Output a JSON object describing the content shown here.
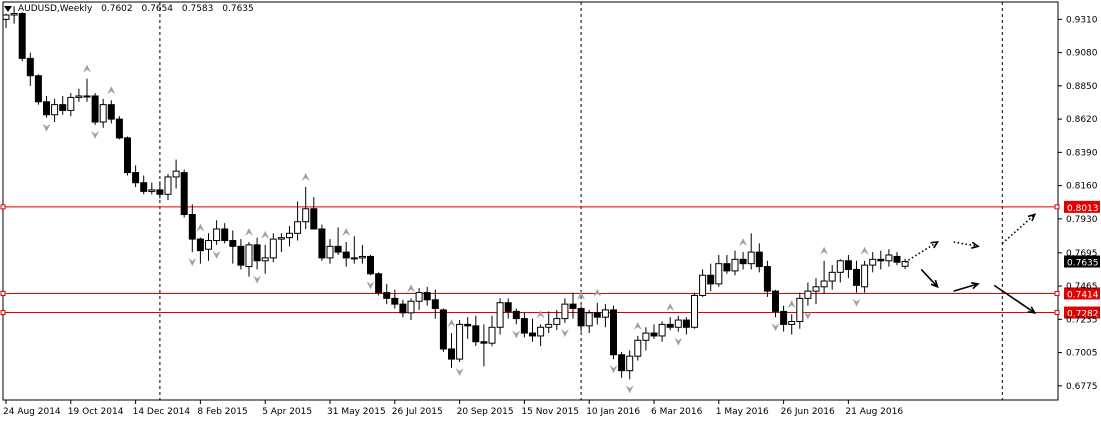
{
  "header": {
    "symbol": "AUDUSD",
    "timeframe": "Weekly",
    "open": "0.7602",
    "high": "0.7654",
    "low": "0.7583",
    "close": "0.7635"
  },
  "colors": {
    "background": "#ffffff",
    "axis": "#000000",
    "bull_fill": "#ffffff",
    "bear_fill": "#000000",
    "level_line": "#e00000",
    "level_label_bg": "#e00000",
    "current_price_bg": "#000000",
    "fractal": "#a0a0a0",
    "grid_dash": "#000000"
  },
  "chart_data": {
    "type": "candlestick",
    "y_range": [
      0.6677,
      0.943
    ],
    "y_ticks": [
      "0.9310",
      "0.9080",
      "0.8850",
      "0.8620",
      "0.8390",
      "0.8160",
      "0.7930",
      "0.7695",
      "0.7465",
      "0.7235",
      "0.7005",
      "0.6775"
    ],
    "x_labels": [
      "24 Aug 2014",
      "19 Oct 2014",
      "14 Dec 2014",
      "8 Feb 2015",
      "5 Apr 2015",
      "31 May 2015",
      "26 Jul 2015",
      "20 Sep 2015",
      "15 Nov 2015",
      "10 Jan 2016",
      "6 Mar 2016",
      "1 May 2016",
      "26 Jun 2016",
      "21 Aug 2016"
    ],
    "x_label_week_index": [
      0,
      8,
      16,
      24,
      32,
      40,
      48,
      56,
      64,
      72,
      80,
      88,
      96,
      104
    ],
    "period_separators_week_index": [
      19,
      71,
      123
    ],
    "levels": [
      {
        "value": 0.8013,
        "label": "0.8013"
      },
      {
        "value": 0.7414,
        "label": "0.7414"
      },
      {
        "value": 0.7282,
        "label": "0.7282"
      }
    ],
    "current_price": {
      "value": 0.7635,
      "label": "0.7635"
    },
    "candles": [
      {
        "o": 0.931,
        "h": 0.935,
        "l": 0.925,
        "c": 0.934
      },
      {
        "o": 0.934,
        "h": 0.94,
        "l": 0.928,
        "c": 0.935
      },
      {
        "o": 0.935,
        "h": 0.936,
        "l": 0.902,
        "c": 0.904
      },
      {
        "o": 0.904,
        "h": 0.908,
        "l": 0.885,
        "c": 0.892
      },
      {
        "o": 0.892,
        "h": 0.893,
        "l": 0.872,
        "c": 0.874
      },
      {
        "o": 0.874,
        "h": 0.878,
        "l": 0.863,
        "c": 0.865
      },
      {
        "o": 0.865,
        "h": 0.876,
        "l": 0.86,
        "c": 0.872
      },
      {
        "o": 0.872,
        "h": 0.878,
        "l": 0.865,
        "c": 0.868
      },
      {
        "o": 0.868,
        "h": 0.88,
        "l": 0.864,
        "c": 0.877
      },
      {
        "o": 0.877,
        "h": 0.883,
        "l": 0.874,
        "c": 0.878
      },
      {
        "o": 0.878,
        "h": 0.89,
        "l": 0.874,
        "c": 0.878
      },
      {
        "o": 0.878,
        "h": 0.88,
        "l": 0.858,
        "c": 0.86
      },
      {
        "o": 0.86,
        "h": 0.876,
        "l": 0.856,
        "c": 0.872
      },
      {
        "o": 0.872,
        "h": 0.875,
        "l": 0.859,
        "c": 0.862
      },
      {
        "o": 0.862,
        "h": 0.864,
        "l": 0.848,
        "c": 0.849
      },
      {
        "o": 0.849,
        "h": 0.85,
        "l": 0.823,
        "c": 0.825
      },
      {
        "o": 0.825,
        "h": 0.83,
        "l": 0.815,
        "c": 0.818
      },
      {
        "o": 0.818,
        "h": 0.823,
        "l": 0.81,
        "c": 0.812
      },
      {
        "o": 0.812,
        "h": 0.818,
        "l": 0.81,
        "c": 0.813
      },
      {
        "o": 0.813,
        "h": 0.819,
        "l": 0.807,
        "c": 0.81
      },
      {
        "o": 0.81,
        "h": 0.824,
        "l": 0.806,
        "c": 0.822
      },
      {
        "o": 0.822,
        "h": 0.834,
        "l": 0.814,
        "c": 0.826
      },
      {
        "o": 0.825,
        "h": 0.827,
        "l": 0.794,
        "c": 0.796
      },
      {
        "o": 0.796,
        "h": 0.803,
        "l": 0.77,
        "c": 0.779
      },
      {
        "o": 0.779,
        "h": 0.78,
        "l": 0.762,
        "c": 0.771
      },
      {
        "o": 0.772,
        "h": 0.783,
        "l": 0.764,
        "c": 0.778
      },
      {
        "o": 0.778,
        "h": 0.792,
        "l": 0.775,
        "c": 0.786
      },
      {
        "o": 0.786,
        "h": 0.79,
        "l": 0.776,
        "c": 0.778
      },
      {
        "o": 0.778,
        "h": 0.785,
        "l": 0.762,
        "c": 0.774
      },
      {
        "o": 0.774,
        "h": 0.779,
        "l": 0.758,
        "c": 0.761
      },
      {
        "o": 0.76,
        "h": 0.777,
        "l": 0.753,
        "c": 0.775
      },
      {
        "o": 0.775,
        "h": 0.78,
        "l": 0.758,
        "c": 0.764
      },
      {
        "o": 0.764,
        "h": 0.775,
        "l": 0.755,
        "c": 0.766
      },
      {
        "o": 0.766,
        "h": 0.783,
        "l": 0.763,
        "c": 0.779
      },
      {
        "o": 0.779,
        "h": 0.783,
        "l": 0.77,
        "c": 0.78
      },
      {
        "o": 0.78,
        "h": 0.788,
        "l": 0.774,
        "c": 0.783
      },
      {
        "o": 0.783,
        "h": 0.805,
        "l": 0.778,
        "c": 0.791
      },
      {
        "o": 0.791,
        "h": 0.815,
        "l": 0.786,
        "c": 0.8
      },
      {
        "o": 0.8,
        "h": 0.808,
        "l": 0.787,
        "c": 0.786
      },
      {
        "o": 0.786,
        "h": 0.789,
        "l": 0.764,
        "c": 0.766
      },
      {
        "o": 0.766,
        "h": 0.779,
        "l": 0.762,
        "c": 0.774
      },
      {
        "o": 0.774,
        "h": 0.787,
        "l": 0.768,
        "c": 0.77
      },
      {
        "o": 0.77,
        "h": 0.777,
        "l": 0.76,
        "c": 0.766
      },
      {
        "o": 0.766,
        "h": 0.781,
        "l": 0.762,
        "c": 0.766
      },
      {
        "o": 0.766,
        "h": 0.775,
        "l": 0.762,
        "c": 0.767
      },
      {
        "o": 0.767,
        "h": 0.768,
        "l": 0.754,
        "c": 0.755
      },
      {
        "o": 0.755,
        "h": 0.756,
        "l": 0.74,
        "c": 0.742
      },
      {
        "o": 0.742,
        "h": 0.748,
        "l": 0.734,
        "c": 0.738
      },
      {
        "o": 0.738,
        "h": 0.744,
        "l": 0.731,
        "c": 0.734
      },
      {
        "o": 0.734,
        "h": 0.737,
        "l": 0.725,
        "c": 0.728
      },
      {
        "o": 0.728,
        "h": 0.738,
        "l": 0.723,
        "c": 0.736
      },
      {
        "o": 0.736,
        "h": 0.745,
        "l": 0.73,
        "c": 0.742
      },
      {
        "o": 0.742,
        "h": 0.746,
        "l": 0.733,
        "c": 0.737
      },
      {
        "o": 0.737,
        "h": 0.744,
        "l": 0.724,
        "c": 0.731
      },
      {
        "o": 0.73,
        "h": 0.731,
        "l": 0.701,
        "c": 0.703
      },
      {
        "o": 0.703,
        "h": 0.714,
        "l": 0.69,
        "c": 0.696
      },
      {
        "o": 0.696,
        "h": 0.723,
        "l": 0.694,
        "c": 0.72
      },
      {
        "o": 0.72,
        "h": 0.725,
        "l": 0.71,
        "c": 0.719
      },
      {
        "o": 0.719,
        "h": 0.726,
        "l": 0.705,
        "c": 0.708
      },
      {
        "o": 0.708,
        "h": 0.72,
        "l": 0.691,
        "c": 0.707
      },
      {
        "o": 0.707,
        "h": 0.726,
        "l": 0.705,
        "c": 0.718
      },
      {
        "o": 0.718,
        "h": 0.738,
        "l": 0.713,
        "c": 0.735
      },
      {
        "o": 0.735,
        "h": 0.738,
        "l": 0.724,
        "c": 0.729
      },
      {
        "o": 0.729,
        "h": 0.731,
        "l": 0.72,
        "c": 0.724
      },
      {
        "o": 0.724,
        "h": 0.728,
        "l": 0.711,
        "c": 0.714
      },
      {
        "o": 0.714,
        "h": 0.724,
        "l": 0.708,
        "c": 0.712
      },
      {
        "o": 0.712,
        "h": 0.72,
        "l": 0.705,
        "c": 0.718
      },
      {
        "o": 0.718,
        "h": 0.729,
        "l": 0.714,
        "c": 0.72
      },
      {
        "o": 0.72,
        "h": 0.73,
        "l": 0.716,
        "c": 0.724
      },
      {
        "o": 0.724,
        "h": 0.738,
        "l": 0.721,
        "c": 0.734
      },
      {
        "o": 0.734,
        "h": 0.742,
        "l": 0.724,
        "c": 0.731
      },
      {
        "o": 0.731,
        "h": 0.733,
        "l": 0.715,
        "c": 0.719
      },
      {
        "o": 0.719,
        "h": 0.73,
        "l": 0.714,
        "c": 0.728
      },
      {
        "o": 0.728,
        "h": 0.735,
        "l": 0.72,
        "c": 0.725
      },
      {
        "o": 0.725,
        "h": 0.734,
        "l": 0.718,
        "c": 0.73
      },
      {
        "o": 0.73,
        "h": 0.733,
        "l": 0.696,
        "c": 0.699
      },
      {
        "o": 0.699,
        "h": 0.701,
        "l": 0.683,
        "c": 0.688
      },
      {
        "o": 0.688,
        "h": 0.702,
        "l": 0.682,
        "c": 0.698
      },
      {
        "o": 0.698,
        "h": 0.712,
        "l": 0.695,
        "c": 0.709
      },
      {
        "o": 0.709,
        "h": 0.718,
        "l": 0.702,
        "c": 0.714
      },
      {
        "o": 0.714,
        "h": 0.72,
        "l": 0.71,
        "c": 0.712
      },
      {
        "o": 0.712,
        "h": 0.722,
        "l": 0.708,
        "c": 0.72
      },
      {
        "o": 0.72,
        "h": 0.725,
        "l": 0.716,
        "c": 0.718
      },
      {
        "o": 0.718,
        "h": 0.726,
        "l": 0.715,
        "c": 0.723
      },
      {
        "o": 0.723,
        "h": 0.725,
        "l": 0.713,
        "c": 0.718
      },
      {
        "o": 0.718,
        "h": 0.742,
        "l": 0.717,
        "c": 0.74
      },
      {
        "o": 0.74,
        "h": 0.758,
        "l": 0.739,
        "c": 0.754
      },
      {
        "o": 0.754,
        "h": 0.762,
        "l": 0.743,
        "c": 0.748
      },
      {
        "o": 0.748,
        "h": 0.768,
        "l": 0.746,
        "c": 0.762
      },
      {
        "o": 0.762,
        "h": 0.768,
        "l": 0.755,
        "c": 0.757
      },
      {
        "o": 0.757,
        "h": 0.771,
        "l": 0.754,
        "c": 0.765
      },
      {
        "o": 0.765,
        "h": 0.77,
        "l": 0.758,
        "c": 0.762
      },
      {
        "o": 0.762,
        "h": 0.783,
        "l": 0.758,
        "c": 0.77
      },
      {
        "o": 0.77,
        "h": 0.776,
        "l": 0.756,
        "c": 0.76
      },
      {
        "o": 0.76,
        "h": 0.764,
        "l": 0.739,
        "c": 0.743
      },
      {
        "o": 0.743,
        "h": 0.744,
        "l": 0.725,
        "c": 0.729
      },
      {
        "o": 0.729,
        "h": 0.733,
        "l": 0.715,
        "c": 0.72
      },
      {
        "o": 0.72,
        "h": 0.727,
        "l": 0.713,
        "c": 0.722
      },
      {
        "o": 0.722,
        "h": 0.742,
        "l": 0.717,
        "c": 0.738
      },
      {
        "o": 0.738,
        "h": 0.749,
        "l": 0.733,
        "c": 0.743
      },
      {
        "o": 0.743,
        "h": 0.752,
        "l": 0.734,
        "c": 0.746
      },
      {
        "o": 0.746,
        "h": 0.764,
        "l": 0.741,
        "c": 0.75
      },
      {
        "o": 0.75,
        "h": 0.761,
        "l": 0.744,
        "c": 0.756
      },
      {
        "o": 0.756,
        "h": 0.765,
        "l": 0.749,
        "c": 0.764
      },
      {
        "o": 0.764,
        "h": 0.768,
        "l": 0.752,
        "c": 0.758
      },
      {
        "o": 0.758,
        "h": 0.764,
        "l": 0.742,
        "c": 0.747
      },
      {
        "o": 0.746,
        "h": 0.764,
        "l": 0.742,
        "c": 0.761
      },
      {
        "o": 0.761,
        "h": 0.77,
        "l": 0.756,
        "c": 0.765
      },
      {
        "o": 0.765,
        "h": 0.771,
        "l": 0.758,
        "c": 0.764
      },
      {
        "o": 0.764,
        "h": 0.772,
        "l": 0.76,
        "c": 0.768
      },
      {
        "o": 0.767,
        "h": 0.77,
        "l": 0.761,
        "c": 0.763
      },
      {
        "o": 0.7602,
        "h": 0.7654,
        "l": 0.7583,
        "c": 0.7635
      }
    ],
    "fractals_up_week_index": [
      10,
      13,
      24,
      30,
      32,
      37,
      42,
      50,
      55,
      66,
      71,
      73,
      78,
      82,
      91,
      97,
      101,
      106
    ],
    "fractals_down_week_index": [
      5,
      11,
      23,
      26,
      31,
      45,
      56,
      63,
      69,
      75,
      77,
      83,
      95,
      99,
      105
    ],
    "arrows": [
      {
        "style": "dotted",
        "from": [
          111,
          0.763
        ],
        "to": [
          115,
          0.777
        ]
      },
      {
        "style": "dotted",
        "from": [
          117,
          0.777
        ],
        "to": [
          120,
          0.774
        ]
      },
      {
        "style": "dotted",
        "from": [
          123,
          0.776
        ],
        "to": [
          127,
          0.796
        ]
      },
      {
        "style": "solid",
        "from": [
          113,
          0.758
        ],
        "to": [
          115,
          0.746
        ]
      },
      {
        "style": "solid",
        "from": [
          117,
          0.743
        ],
        "to": [
          120,
          0.748
        ]
      },
      {
        "style": "solid",
        "from": [
          122,
          0.747
        ],
        "to": [
          127,
          0.728
        ]
      }
    ]
  }
}
